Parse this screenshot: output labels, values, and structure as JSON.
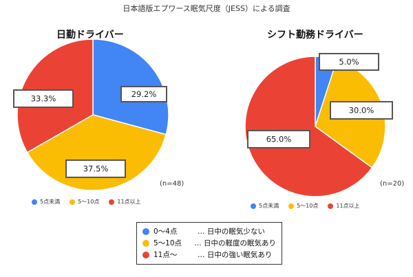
{
  "title": "日本語版エプワース眠気尺度（JESS）による調査",
  "colors": {
    "blue": "#4285f4",
    "yellow": "#fbbc04",
    "red": "#ea4335"
  },
  "chart_data": [
    {
      "type": "pie",
      "title": "日勤ドライバー",
      "n_label": "(n=48)",
      "categories": [
        "5点未満",
        "5〜10点",
        "11点以上"
      ],
      "values": [
        29.2,
        37.5,
        33.3
      ],
      "labels": [
        "29.2%",
        "37.5%",
        "33.3%"
      ],
      "legend": [
        "5点未満",
        "5〜10点",
        "11点以上"
      ]
    },
    {
      "type": "pie",
      "title": "シフト勤務ドライバー",
      "n_label": "(n=20)",
      "categories": [
        "5点未満",
        "5〜10点",
        "11点以上"
      ],
      "values": [
        5.0,
        30.0,
        65.0
      ],
      "labels": [
        "5.0%",
        "30.0%",
        "65.0%"
      ],
      "legend": [
        "5点未満",
        "5〜10点",
        "11点以上"
      ]
    }
  ],
  "legend_box": [
    {
      "range": "0〜4点",
      "desc": "… 日中の眠気少ない",
      "color": "blue"
    },
    {
      "range": "5〜10点",
      "desc": "… 日中の軽度の眠気あり",
      "color": "yellow"
    },
    {
      "range": "11点〜",
      "desc": "… 日中の強い眠気あり",
      "color": "red"
    }
  ]
}
